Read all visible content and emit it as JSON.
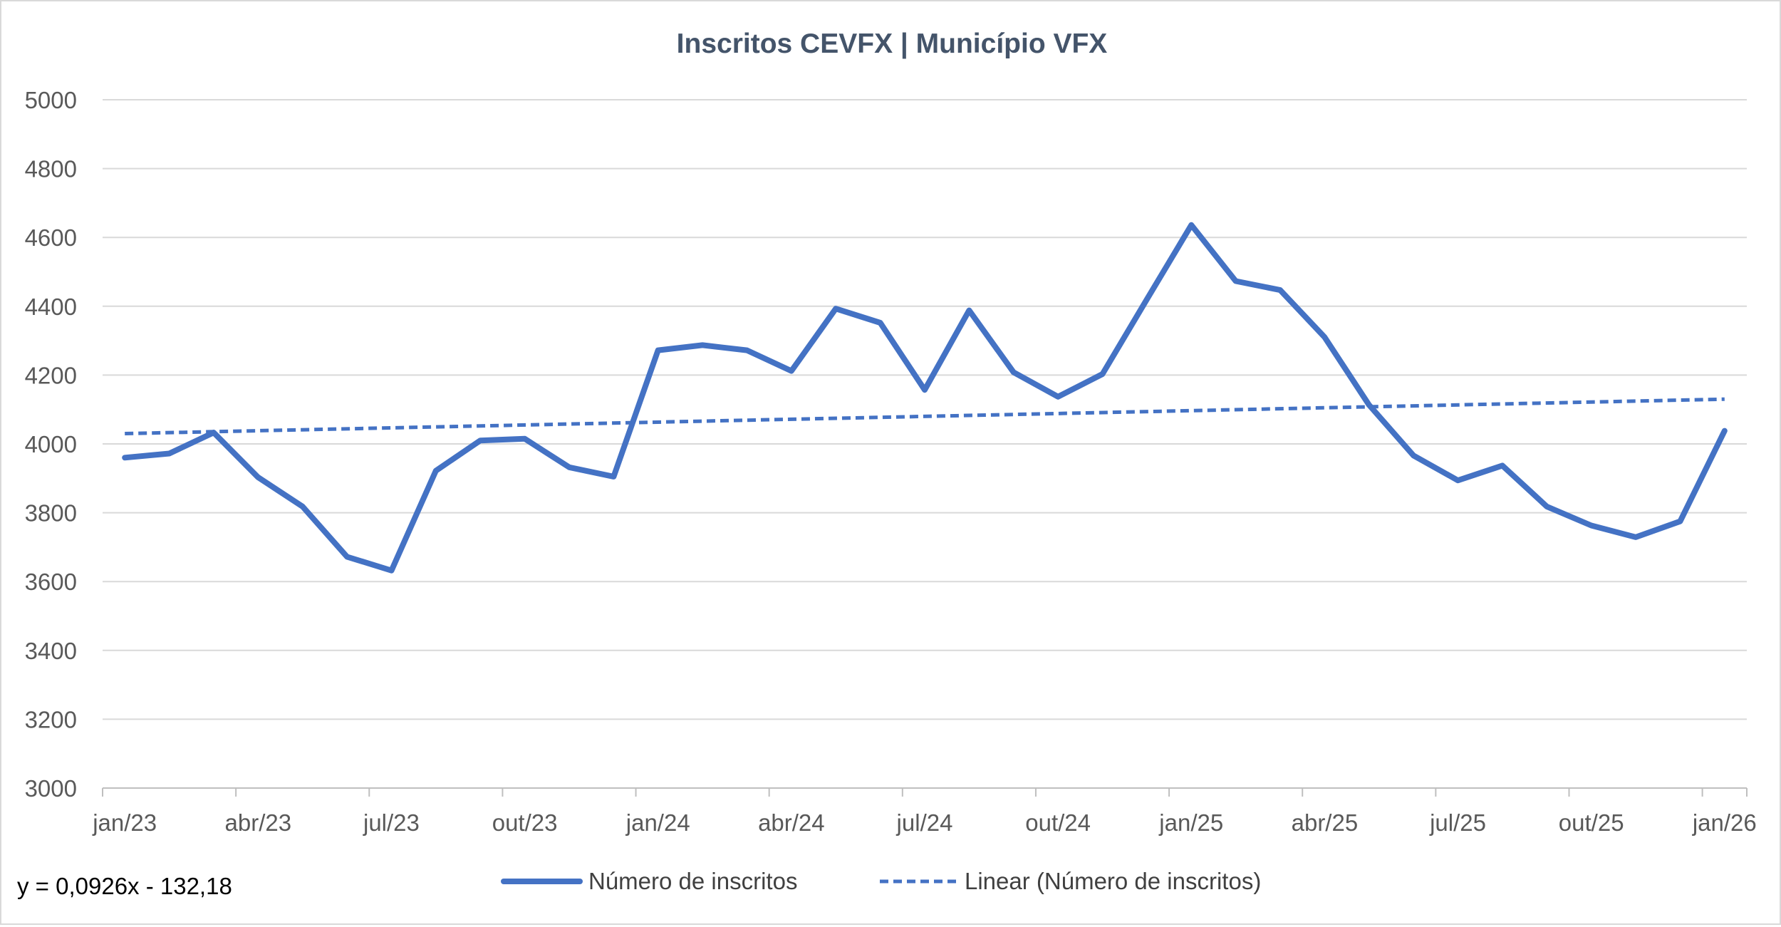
{
  "chart_data": {
    "type": "line",
    "title": "Inscritos CEVFX | Município VFX",
    "xlabel": "",
    "ylabel": "",
    "ylim": [
      3000,
      5000
    ],
    "yticks": [
      3000,
      3200,
      3400,
      3600,
      3800,
      4000,
      4200,
      4400,
      4600,
      4800,
      5000
    ],
    "x_tick_labels": [
      "jan/23",
      "abr/23",
      "jul/23",
      "out/23",
      "jan/24",
      "abr/24",
      "jul/24",
      "out/24",
      "jan/25",
      "abr/25",
      "jul/25",
      "out/25",
      "jan/26"
    ],
    "x": [
      "jan/23",
      "fev/23",
      "mar/23",
      "abr/23",
      "mai/23",
      "jun/23",
      "jul/23",
      "ago/23",
      "set/23",
      "out/23",
      "nov/23",
      "dez/23",
      "jan/24",
      "fev/24",
      "mar/24",
      "abr/24",
      "mai/24",
      "jun/24",
      "jul/24",
      "ago/24",
      "set/24",
      "out/24",
      "nov/24",
      "dez/24",
      "jan/25",
      "fev/25",
      "mar/25",
      "abr/25",
      "mai/25",
      "jun/25",
      "jul/25",
      "ago/25",
      "set/25",
      "out/25",
      "nov/25",
      "dez/25",
      "jan/26"
    ],
    "series": [
      {
        "name": "Número de inscritos",
        "style": "solid",
        "color": "#4472C4",
        "values": [
          3960,
          3972,
          4033,
          3903,
          3818,
          3672,
          3632,
          3922,
          4010,
          4015,
          3932,
          3905,
          4272,
          4287,
          4272,
          4212,
          4393,
          4352,
          4157,
          4388,
          4208,
          4137,
          4203,
          4420,
          4636,
          4473,
          4447,
          4310,
          4113,
          3966,
          3894,
          3937,
          3818,
          3763,
          3729,
          3775,
          4038
        ]
      },
      {
        "name": "Linear (Número de inscritos)",
        "style": "dashed",
        "color": "#4472C4",
        "trend_start": 4030,
        "trend_end": 4130
      }
    ],
    "trendline_equation": "y = 0,0926x - 132,18",
    "grid": true,
    "legend_position": "bottom"
  }
}
